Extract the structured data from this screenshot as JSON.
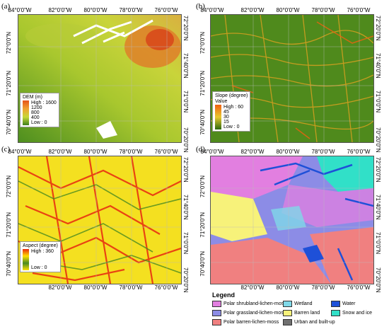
{
  "panels": {
    "a": {
      "letter": "(a)",
      "legend": {
        "title": "DEM (m)",
        "high": "High : 1600",
        "ticks": [
          "1200",
          "800",
          "400"
        ],
        "low": "Low : 0"
      }
    },
    "b": {
      "letter": "(b)",
      "legend": {
        "title": "Slope (degree)",
        "sub": "Value",
        "high": "High : 60",
        "ticks": [
          "45",
          "30",
          "15"
        ],
        "low": "Low : 0"
      }
    },
    "c": {
      "letter": "(c)",
      "legend": {
        "title": "Aspect (degree)",
        "high": "High : 360",
        "low": "Low : 0"
      }
    },
    "d": {
      "letter": "(d)"
    }
  },
  "lon_labels": [
    "84°0'0\"W",
    "82°0'0\"W",
    "80°0'0\"W",
    "78°0'0\"W",
    "76°0'0\"W"
  ],
  "lon_labels_bottom": [
    "82°0'0\"W",
    "80°0'0\"W",
    "78°0'0\"W",
    "76°0'0\"W"
  ],
  "lat_left": [
    "72°0'0\"N",
    "71°20'0\"N",
    "70°40'0\"N"
  ],
  "lat_right": [
    "72°20'0\"N",
    "71°40'0\"N",
    "71°0'0\"N",
    "70°20'0\"N"
  ],
  "landcover_legend": {
    "title": "Legend",
    "items": [
      {
        "label": "Polar shrubland-lichen-moss",
        "color": "#e27fe0"
      },
      {
        "label": "Polar grassland-lichen-moss",
        "color": "#8c8ce6"
      },
      {
        "label": "Polar barren-lichen-moss",
        "color": "#f08080"
      },
      {
        "label": "Wetland",
        "color": "#7fd8e8"
      },
      {
        "label": "Barren land",
        "color": "#f7f27a"
      },
      {
        "label": "Urban and built-up",
        "color": "#707070"
      },
      {
        "label": "Water",
        "color": "#1e50d8"
      },
      {
        "label": "Snow and ice",
        "color": "#31e0c8"
      }
    ]
  },
  "colors": {
    "dem_low": "#3f7f1e",
    "dem_mid": "#c7d836",
    "dem_high": "#e6531a",
    "slope_low": "#2d6a10",
    "slope_high": "#f06010",
    "aspect_a": "#ffe000",
    "aspect_b": "#e82810",
    "aspect_c": "#4a8a20"
  }
}
